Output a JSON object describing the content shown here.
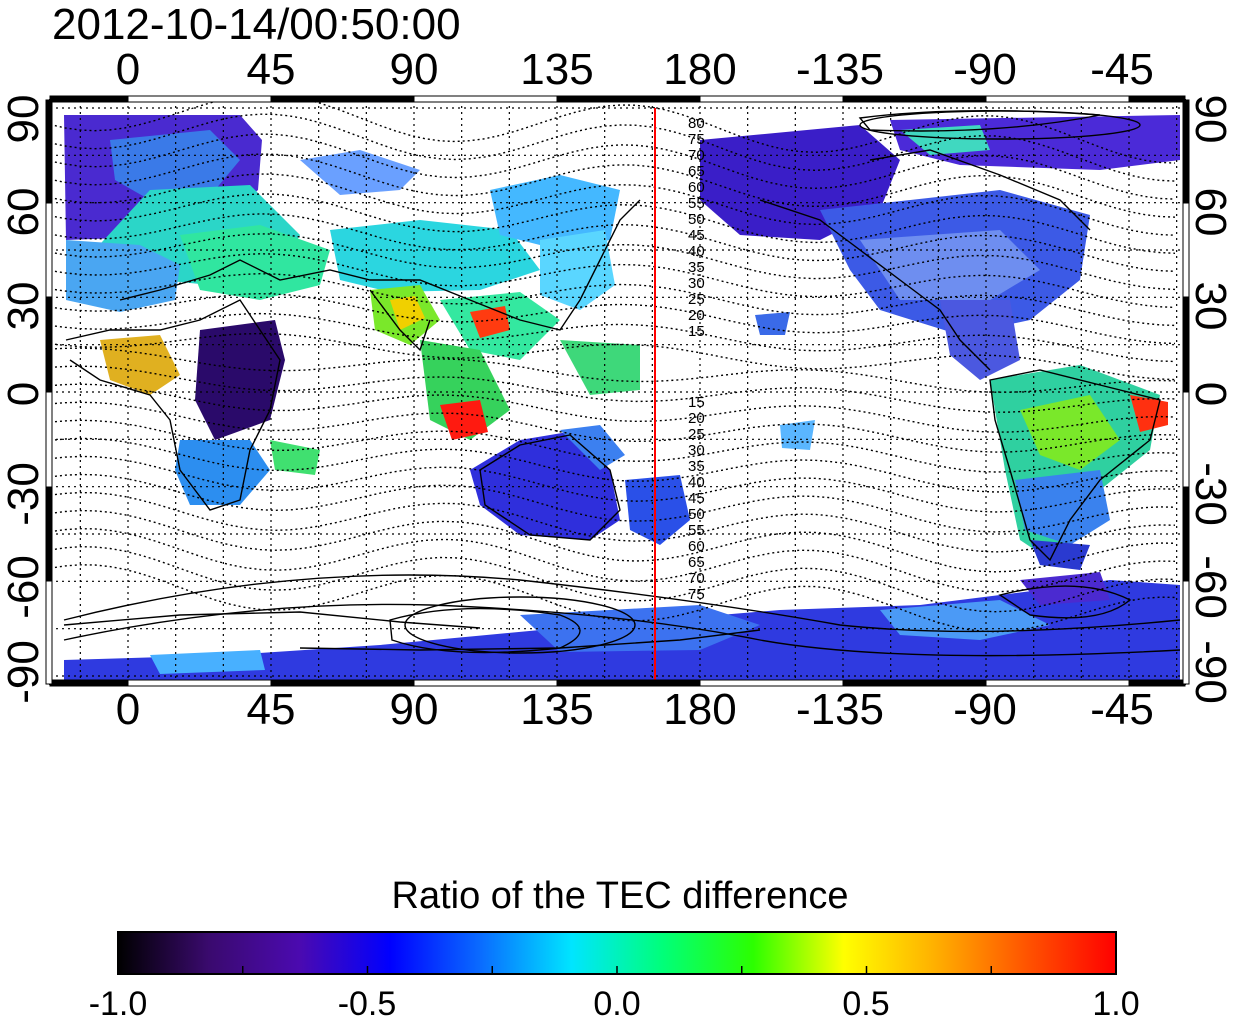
{
  "title": "2012-10-14/00:50:00",
  "top_lon_ticks": [
    "0",
    "45",
    "90",
    "135",
    "180",
    "-135",
    "-90",
    "-45"
  ],
  "bottom_lon_ticks": [
    "0",
    "45",
    "90",
    "135",
    "180",
    "-135",
    "-90",
    "-45"
  ],
  "left_lat_ticks": [
    "90",
    "60",
    "30",
    "0",
    "-30",
    "-60",
    "-90"
  ],
  "right_lat_ticks": [
    "90",
    "60",
    "30",
    "0",
    "-30",
    "-60",
    "-90"
  ],
  "contour_labels_north": [
    "80",
    "75",
    "70",
    "65",
    "60",
    "55",
    "50",
    "45",
    "40",
    "35",
    "30",
    "25",
    "20",
    "15"
  ],
  "contour_labels_south": [
    "15",
    "20",
    "25",
    "30",
    "35",
    "40",
    "45",
    "50",
    "55",
    "60",
    "65",
    "70",
    "75"
  ],
  "marker_line": {
    "color": "#ff0000"
  },
  "colorbar": {
    "title": "Ratio of the TEC difference",
    "ticks": [
      "-1.0",
      "-0.5",
      "0.0",
      "0.5",
      "1.0"
    ],
    "min": -1.0,
    "max": 1.0,
    "colors": [
      "#000000",
      "#3a0a6e",
      "#4b0ab0",
      "#0000ff",
      "#0a6cff",
      "#00e5ff",
      "#00ff7a",
      "#2cff00",
      "#ffff00",
      "#ffb000",
      "#ff5500",
      "#ff0000"
    ]
  }
}
